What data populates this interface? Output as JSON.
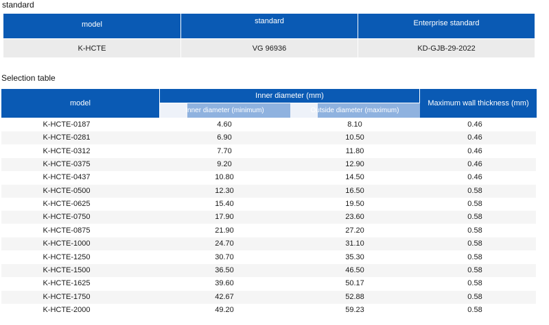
{
  "standard_section": {
    "title": "standard",
    "headers": [
      "model",
      "standard",
      "Enterprise standard"
    ],
    "values": [
      "K-HCTE",
      "VG 96936",
      "KD-GJB-29-2022"
    ]
  },
  "selection_section": {
    "title": "Selection table",
    "headers": {
      "model": "model",
      "inner_group": "Inner diameter (mm)",
      "inner_min": "Inner diameter (minimum)",
      "outside_max": "Outside diameter (maximum)",
      "wall": "Maximum wall thickness (mm)"
    },
    "rows": [
      {
        "model": "K-HCTE-0187",
        "inner": "4.60",
        "outer": "8.10",
        "wall": "0.46"
      },
      {
        "model": "K-HCTE-0281",
        "inner": "6.90",
        "outer": "10.50",
        "wall": "0.46"
      },
      {
        "model": "K-HCTE-0312",
        "inner": "7.70",
        "outer": "11.80",
        "wall": "0.46"
      },
      {
        "model": "K-HCTE-0375",
        "inner": "9.20",
        "outer": "12.90",
        "wall": "0.46"
      },
      {
        "model": "K-HCTE-0437",
        "inner": "10.80",
        "outer": "14.50",
        "wall": "0.46"
      },
      {
        "model": "K-HCTE-0500",
        "inner": "12.30",
        "outer": "16.50",
        "wall": "0.58"
      },
      {
        "model": "K-HCTE-0625",
        "inner": "15.40",
        "outer": "19.50",
        "wall": "0.58"
      },
      {
        "model": "K-HCTE-0750",
        "inner": "17.90",
        "outer": "23.60",
        "wall": "0.58"
      },
      {
        "model": "K-HCTE-0875",
        "inner": "21.90",
        "outer": "27.20",
        "wall": "0.58"
      },
      {
        "model": "K-HCTE-1000",
        "inner": "24.70",
        "outer": "31.10",
        "wall": "0.58"
      },
      {
        "model": "K-HCTE-1250",
        "inner": "30.70",
        "outer": "35.30",
        "wall": "0.58"
      },
      {
        "model": "K-HCTE-1500",
        "inner": "36.50",
        "outer": "46.50",
        "wall": "0.58"
      },
      {
        "model": "K-HCTE-1625",
        "inner": "39.60",
        "outer": "50.17",
        "wall": "0.58"
      },
      {
        "model": "K-HCTE-1750",
        "inner": "42.67",
        "outer": "52.88",
        "wall": "0.58"
      },
      {
        "model": "K-HCTE-2000",
        "inner": "49.20",
        "outer": "59.23",
        "wall": "0.58"
      }
    ]
  },
  "colors": {
    "header_blue": "#0a5ab4",
    "subheader_tint": "#8fb2df",
    "row_grey": "#ebebeb"
  }
}
